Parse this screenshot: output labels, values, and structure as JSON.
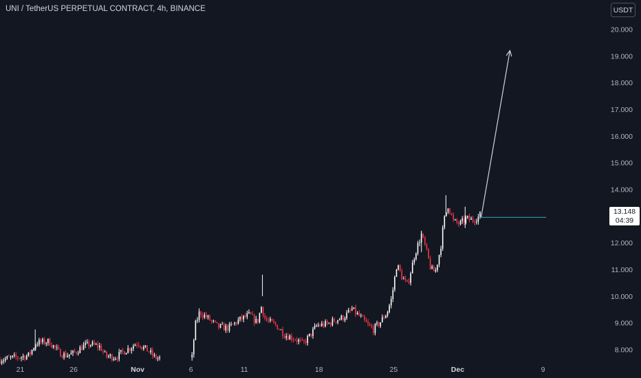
{
  "header": {
    "title": "UNI / TetherUS PERPETUAL CONTRACT, 4h, BINANCE",
    "currency_button": "USDT"
  },
  "price_tag": {
    "price": "13.148",
    "countdown": "04:39"
  },
  "colors": {
    "background": "#131722",
    "up": "#ffffff",
    "down": "#f23645",
    "line": "#2fa8c2",
    "arrow": "#d1d4dc",
    "axis_text": "#b2b5be"
  },
  "chart_data": {
    "type": "candlestick",
    "title": "UNI / TetherUS PERPETUAL CONTRACT, 4h, BINANCE",
    "y_ticks": [
      "8.000",
      "9.000",
      "10.000",
      "11.000",
      "12.000",
      "13.000",
      "14.000",
      "15.000",
      "16.000",
      "17.000",
      "18.000",
      "19.000",
      "20.000"
    ],
    "y_range": [
      7.6,
      20.4
    ],
    "x_ticks": [
      {
        "label": "21",
        "day": 0
      },
      {
        "label": "26",
        "day": 5
      },
      {
        "label": "Nov",
        "day": 11
      },
      {
        "label": "6",
        "day": 16
      },
      {
        "label": "11",
        "day": 21
      },
      {
        "label": "18",
        "day": 28
      },
      {
        "label": "25",
        "day": 35
      },
      {
        "label": "Dec",
        "day": 41
      },
      {
        "label": "9",
        "day": 49
      }
    ],
    "x_range_days": [
      -1.9,
      52.9
    ],
    "last_price": 13.148,
    "current_price_line": {
      "value": 12.95,
      "from_day": 43.2,
      "to_day": 49.3
    },
    "projection_arrow": {
      "from": {
        "day": 43.2,
        "value": 12.95
      },
      "to": {
        "day": 45.9,
        "value": 19.2
      }
    },
    "segments": [
      {
        "start": -1.9,
        "end": 11.4,
        "path": [
          [
            -1.9,
            7.62
          ],
          [
            0,
            7.72
          ],
          [
            0.8,
            7.78
          ],
          [
            1.5,
            8.25
          ],
          [
            2.7,
            8.3
          ],
          [
            3.6,
            7.9
          ],
          [
            4.2,
            7.78
          ],
          [
            5,
            7.85
          ],
          [
            5.8,
            8.1
          ],
          [
            6.5,
            8.2
          ],
          [
            7.5,
            8.1
          ],
          [
            8,
            7.75
          ],
          [
            9,
            7.72
          ],
          [
            9.6,
            7.9
          ],
          [
            10.5,
            8.12
          ],
          [
            10.9,
            8.25
          ],
          [
            11.3,
            8.2
          ]
        ]
      },
      {
        "start": 11.4,
        "end": 13.2,
        "path": [
          [
            11.4,
            8.1
          ],
          [
            12,
            7.95
          ],
          [
            12.6,
            7.7
          ],
          [
            13.2,
            7.65
          ]
        ]
      },
      {
        "start": 16.1,
        "end": 43.2,
        "path": [
          [
            16.1,
            7.7
          ],
          [
            16.4,
            8.9
          ],
          [
            16.8,
            9.4
          ],
          [
            17.5,
            9.2
          ],
          [
            18.5,
            8.85
          ],
          [
            19.5,
            8.8
          ],
          [
            20.5,
            9.1
          ],
          [
            21.5,
            9.3
          ],
          [
            22.2,
            9.0
          ],
          [
            22.6,
            9.6
          ],
          [
            23,
            9.1
          ],
          [
            24,
            8.9
          ],
          [
            24.8,
            8.55
          ],
          [
            25.8,
            8.4
          ],
          [
            26.5,
            8.2
          ],
          [
            27.2,
            8.55
          ],
          [
            27.8,
            8.9
          ],
          [
            28.8,
            8.95
          ],
          [
            29.5,
            9.1
          ],
          [
            30.3,
            9.2
          ],
          [
            31.1,
            9.5
          ],
          [
            31.9,
            9.2
          ],
          [
            32.6,
            8.9
          ],
          [
            33.1,
            8.75
          ],
          [
            33.7,
            9.0
          ],
          [
            34.4,
            9.4
          ],
          [
            34.8,
            9.9
          ],
          [
            35.3,
            11.2
          ],
          [
            35.8,
            10.7
          ],
          [
            36.3,
            10.4
          ],
          [
            37,
            11.6
          ],
          [
            37.6,
            12.3
          ],
          [
            38,
            11.8
          ],
          [
            38.5,
            11.0
          ],
          [
            38.9,
            10.9
          ],
          [
            39.4,
            11.8
          ],
          [
            39.7,
            12.8
          ],
          [
            40.1,
            13.4
          ],
          [
            40.6,
            12.8
          ],
          [
            41.2,
            12.7
          ],
          [
            41.8,
            12.9
          ],
          [
            42.4,
            12.85
          ],
          [
            42.9,
            12.95
          ],
          [
            43.2,
            13.1
          ]
        ]
      }
    ],
    "spikes": [
      {
        "day": 1.4,
        "value": 8.75
      },
      {
        "day": 22.7,
        "value": 10.8
      },
      {
        "day": 39.9,
        "value": 13.78
      },
      {
        "day": 37.6,
        "value": 12.45
      },
      {
        "day": 41.7,
        "value": 13.35
      }
    ]
  }
}
